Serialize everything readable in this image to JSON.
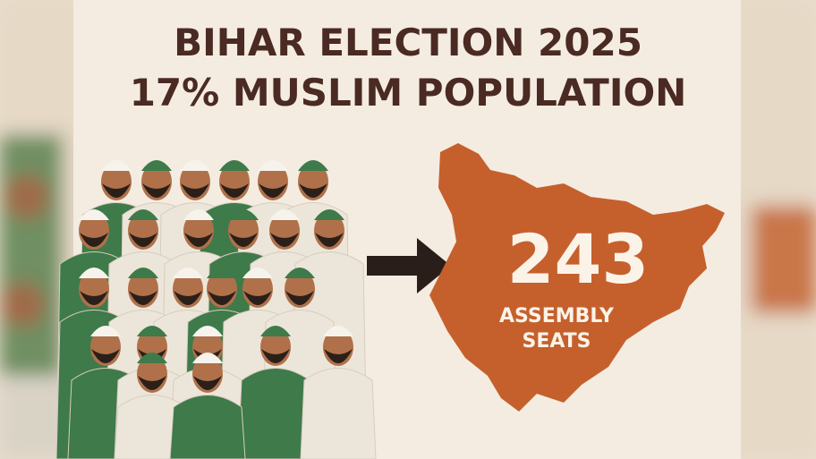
{
  "title_lines": [
    "BIHAR ELECTION 2025",
    "17% MUSLIM POPULATION"
  ],
  "map": {
    "number": "243",
    "label_lines": [
      "ASSEMBLY",
      "SEATS"
    ]
  }
}
